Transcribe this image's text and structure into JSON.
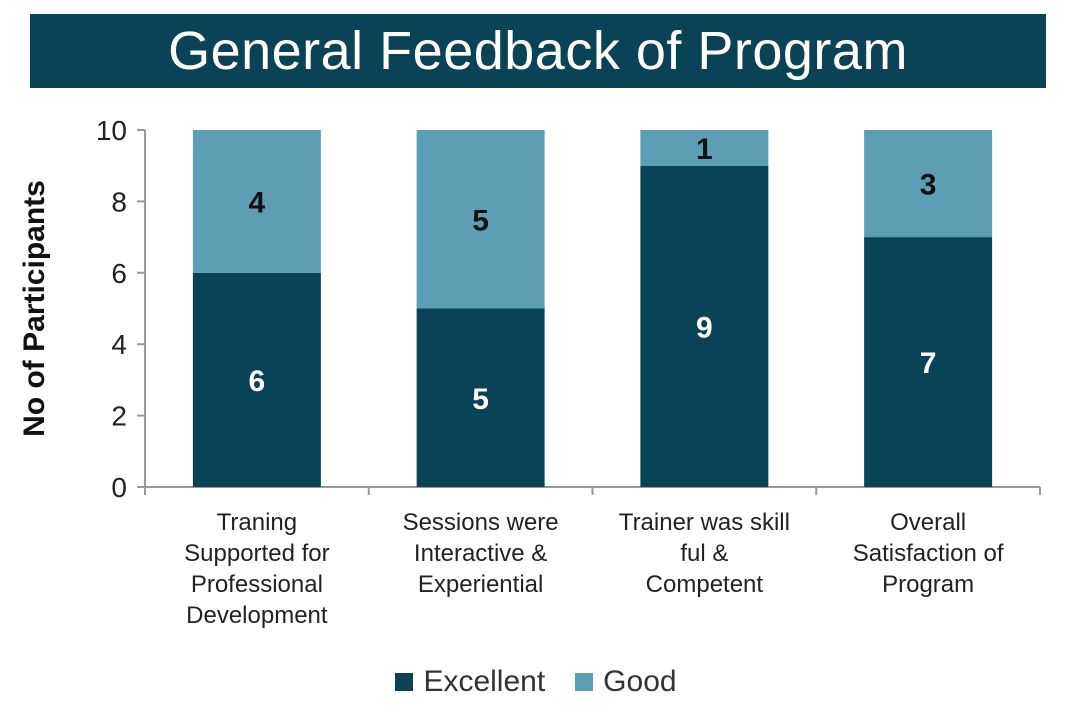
{
  "header": {
    "title": "General Feedback of Program"
  },
  "colors": {
    "excellent": "#0b4356",
    "good": "#5d9eb5",
    "title_bg": "#0b4356"
  },
  "chart_data": {
    "type": "bar",
    "stacked": true,
    "title": "General Feedback of Program",
    "xlabel": "",
    "ylabel": "No of Participants",
    "ylim": [
      0,
      10
    ],
    "yticks": [
      0,
      2,
      4,
      6,
      8,
      10
    ],
    "categories": [
      [
        "Traning",
        "Supported for",
        "Professional",
        "Development"
      ],
      [
        "Sessions were",
        "Interactive &",
        "Experiential"
      ],
      [
        "Trainer was skill",
        "ful &",
        "Competent"
      ],
      [
        "Overall",
        "Satisfaction of",
        "Program"
      ]
    ],
    "series": [
      {
        "name": "Excellent",
        "color": "#0b4356",
        "values": [
          6,
          5,
          9,
          7
        ]
      },
      {
        "name": "Good",
        "color": "#5d9eb5",
        "values": [
          4,
          5,
          1,
          3
        ]
      }
    ],
    "legend_position": "bottom",
    "grid": false
  }
}
